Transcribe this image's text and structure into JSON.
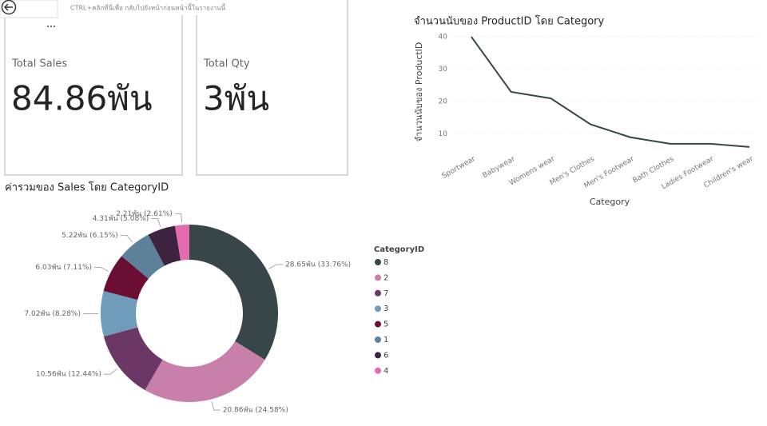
{
  "tooltip": "CTRL+คลิกที่นี่เพื่อ กลับไปยังหน้าก่อนหน้านี้ในรายงานนี้",
  "cards": [
    {
      "label": "Total Sales",
      "value": "84.86พัน"
    },
    {
      "label": "Total Qty",
      "value": "3พัน"
    }
  ],
  "chart_data": [
    {
      "type": "line",
      "title": "จำนวนนับของ ProductID โดย Category",
      "x_label": "Category",
      "y_label": "จำนวนนับของ ProductID",
      "categories": [
        "Sportwear",
        "Babywear",
        "Womens wear",
        "Men's Clothes",
        "Men's Footwear",
        "Bath Clothes",
        "Ladies Footwear",
        "Children's wear"
      ],
      "values": [
        40,
        23,
        21,
        13,
        9,
        7,
        7,
        6
      ],
      "color": "#374649",
      "ylim": [
        4.5,
        41
      ],
      "yticks": [
        10,
        20,
        30,
        40
      ],
      "grid": true
    },
    {
      "type": "donut",
      "title": "ค่ารวมของ Sales โดย CategoryID",
      "legend_title": "CategoryID",
      "categories": [
        "8",
        "2",
        "7",
        "3",
        "5",
        "1",
        "6",
        "4"
      ],
      "values": [
        28.65,
        20.86,
        10.56,
        7.02,
        6.03,
        5.22,
        4.31,
        2.21
      ],
      "value_labels": [
        "28.65พัน (33.76%)",
        "20.86พัน (24.58%)",
        "10.56พัน (12.44%)",
        "7.02พัน (8.28%)",
        "6.03พัน (7.11%)",
        "5.22พัน (6.15%)",
        "4.31พัน (5.08%)",
        "2.21พัน (2.61%)"
      ],
      "colors": [
        "#374649",
        "#c880ab",
        "#6b3866",
        "#6f9cbb",
        "#6b0e33",
        "#5d8199",
        "#3d2340",
        "#e36bae"
      ]
    }
  ]
}
